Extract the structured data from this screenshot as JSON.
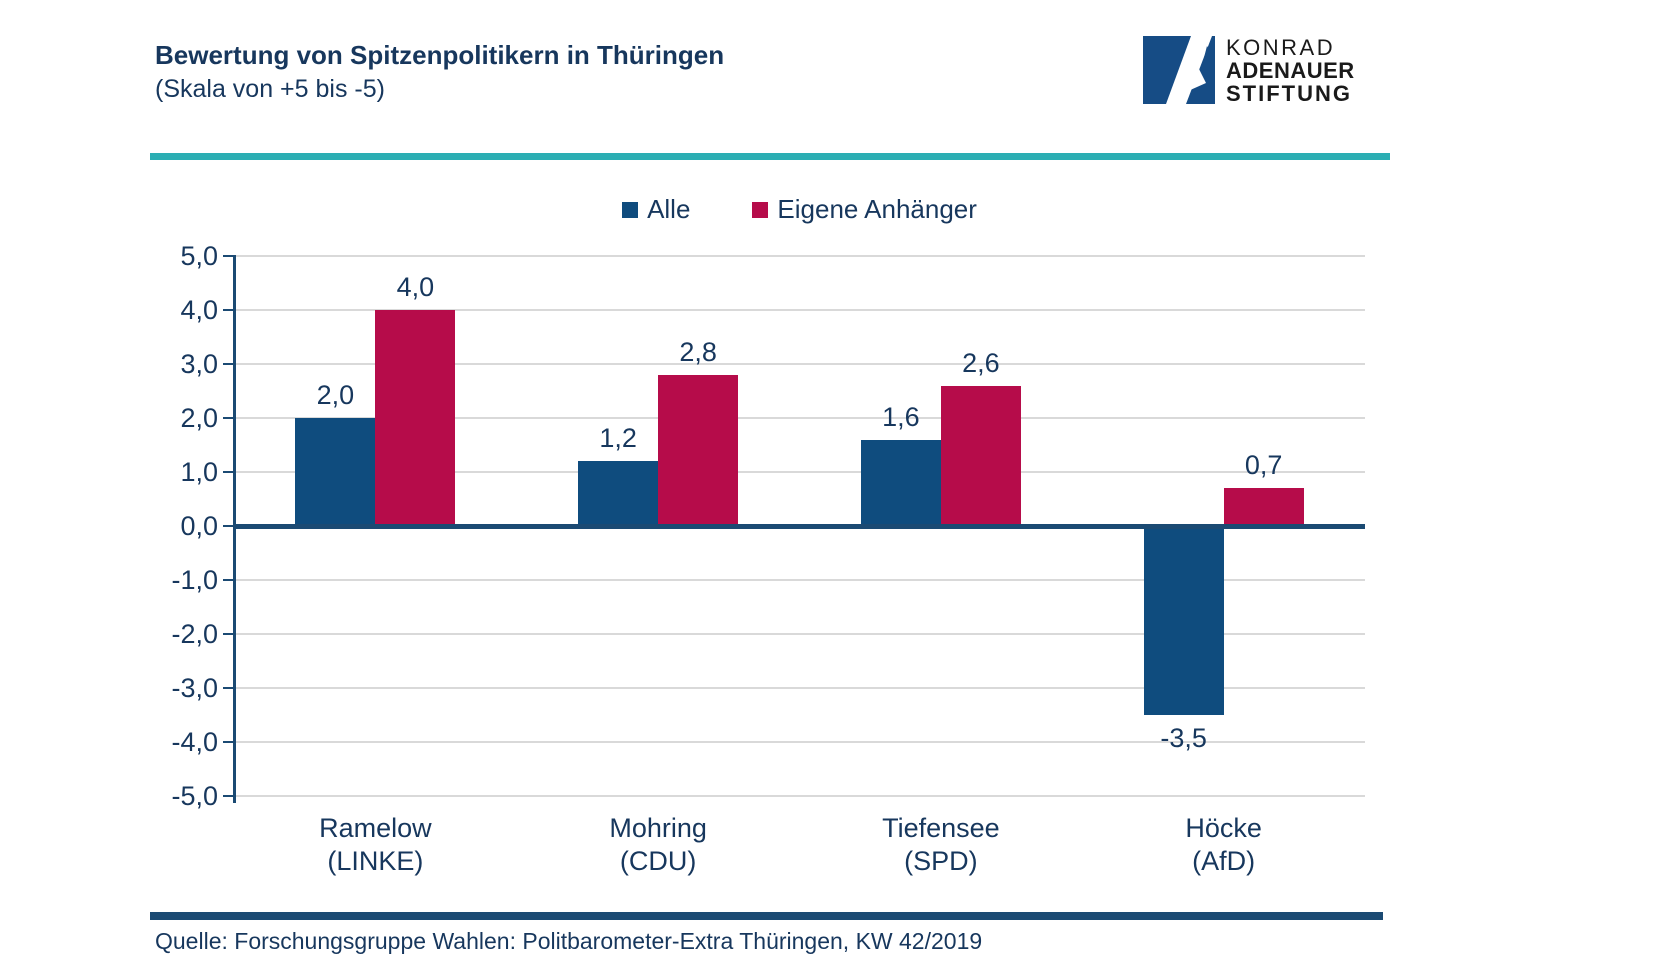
{
  "header": {
    "title": "Bewertung von Spitzenpolitikern in Thüringen",
    "subtitle": "(Skala von +5 bis -5)"
  },
  "logo": {
    "line1": "KONRAD",
    "line2": "ADENAUER",
    "line3": "STIFTUNG"
  },
  "footer": {
    "source": "Quelle: Forschungsgruppe Wahlen: Politbarometer-Extra Thüringen, KW 42/2019"
  },
  "colors": {
    "bar_alle": "#0F4C7E",
    "bar_eigene_anhaenger": "#B60C4A",
    "accent_teal": "#2BAEB3",
    "text_navy": "#17375D",
    "axis_navy": "#1B4A73",
    "gridline_gray": "#D9D9D9",
    "logo_blue": "#164C85"
  },
  "chart_data": {
    "type": "bar",
    "title": "Bewertung von Spitzenpolitikern in Thüringen",
    "subtitle": "(Skala von +5 bis -5)",
    "categories": [
      {
        "name": "Ramelow",
        "party": "(LINKE)"
      },
      {
        "name": "Mohring",
        "party": "(CDU)"
      },
      {
        "name": "Tiefensee",
        "party": "(SPD)"
      },
      {
        "name": "Höcke",
        "party": "(AfD)"
      }
    ],
    "series": [
      {
        "name": "Alle",
        "color": "#0F4C7E",
        "values": [
          2.0,
          1.2,
          1.6,
          -3.5
        ]
      },
      {
        "name": "Eigene Anhänger",
        "color": "#B60C4A",
        "values": [
          4.0,
          2.8,
          2.6,
          0.7
        ]
      }
    ],
    "ylim": [
      -5,
      5
    ],
    "ytick_step": 1.0,
    "ytick_labels": [
      "5,0",
      "4,0",
      "3,0",
      "2,0",
      "1,0",
      "0,0",
      "-1,0",
      "-2,0",
      "-3,0",
      "-4,0",
      "-5,0"
    ],
    "grid": true,
    "legend_position": "top",
    "value_label_format": "german-decimal-comma-1dp"
  }
}
